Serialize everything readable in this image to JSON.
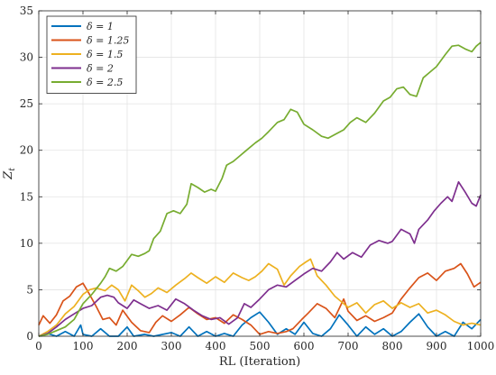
{
  "chart_data": {
    "type": "line",
    "title": "",
    "xlabel": "RL (Iteration)",
    "ylabel": "Z_t",
    "ylabel_main": "Z",
    "ylabel_sub": "t",
    "xlim": [
      0,
      1000
    ],
    "ylim": [
      0,
      35
    ],
    "xticks": [
      0,
      100,
      200,
      300,
      400,
      500,
      600,
      700,
      800,
      900,
      1000
    ],
    "yticks": [
      0,
      5,
      10,
      15,
      20,
      25,
      30,
      35
    ],
    "grid": true,
    "legend_location": "top-left",
    "series": [
      {
        "name": "δ = 1",
        "color": "#0072BD",
        "points": [
          [
            0,
            0
          ],
          [
            20,
            0.3
          ],
          [
            40,
            0
          ],
          [
            60,
            0.5
          ],
          [
            80,
            0
          ],
          [
            95,
            1.2
          ],
          [
            100,
            0.2
          ],
          [
            120,
            0
          ],
          [
            140,
            0.8
          ],
          [
            160,
            0
          ],
          [
            180,
            0
          ],
          [
            200,
            1.0
          ],
          [
            215,
            0
          ],
          [
            240,
            0.2
          ],
          [
            260,
            0
          ],
          [
            300,
            0.4
          ],
          [
            320,
            0
          ],
          [
            340,
            1.0
          ],
          [
            360,
            0
          ],
          [
            380,
            0.5
          ],
          [
            400,
            0
          ],
          [
            420,
            0.3
          ],
          [
            440,
            0
          ],
          [
            460,
            1.2
          ],
          [
            480,
            2.0
          ],
          [
            500,
            2.6
          ],
          [
            520,
            1.5
          ],
          [
            540,
            0.2
          ],
          [
            560,
            0.8
          ],
          [
            580,
            0.2
          ],
          [
            600,
            1.5
          ],
          [
            620,
            0.3
          ],
          [
            640,
            0
          ],
          [
            660,
            0.8
          ],
          [
            680,
            2.3
          ],
          [
            700,
            1.2
          ],
          [
            720,
            0
          ],
          [
            740,
            1.0
          ],
          [
            760,
            0.2
          ],
          [
            780,
            0.8
          ],
          [
            800,
            0
          ],
          [
            820,
            0.5
          ],
          [
            840,
            1.5
          ],
          [
            860,
            2.4
          ],
          [
            880,
            1.0
          ],
          [
            900,
            0
          ],
          [
            920,
            0.5
          ],
          [
            940,
            0
          ],
          [
            960,
            1.5
          ],
          [
            980,
            0.8
          ],
          [
            1000,
            1.8
          ]
        ]
      },
      {
        "name": "δ = 1.25",
        "color": "#D95319",
        "points": [
          [
            0,
            1.2
          ],
          [
            10,
            2.2
          ],
          [
            25,
            1.4
          ],
          [
            40,
            2.3
          ],
          [
            55,
            3.8
          ],
          [
            70,
            4.3
          ],
          [
            85,
            5.3
          ],
          [
            100,
            5.7
          ],
          [
            115,
            4.5
          ],
          [
            130,
            3.2
          ],
          [
            145,
            1.8
          ],
          [
            160,
            2.0
          ],
          [
            175,
            1.2
          ],
          [
            190,
            2.8
          ],
          [
            210,
            1.5
          ],
          [
            230,
            0.6
          ],
          [
            250,
            0.4
          ],
          [
            265,
            1.5
          ],
          [
            280,
            2.2
          ],
          [
            300,
            1.6
          ],
          [
            320,
            2.3
          ],
          [
            340,
            3.1
          ],
          [
            360,
            2.4
          ],
          [
            380,
            1.8
          ],
          [
            400,
            2.0
          ],
          [
            420,
            1.4
          ],
          [
            440,
            2.3
          ],
          [
            460,
            1.8
          ],
          [
            480,
            1.2
          ],
          [
            500,
            0.2
          ],
          [
            520,
            0.5
          ],
          [
            540,
            0.3
          ],
          [
            560,
            0.5
          ],
          [
            575,
            0.8
          ],
          [
            595,
            1.8
          ],
          [
            610,
            2.5
          ],
          [
            630,
            3.5
          ],
          [
            650,
            3.0
          ],
          [
            670,
            2.0
          ],
          [
            690,
            4.0
          ],
          [
            700,
            2.7
          ],
          [
            720,
            1.7
          ],
          [
            740,
            2.2
          ],
          [
            760,
            1.6
          ],
          [
            780,
            2.0
          ],
          [
            800,
            2.5
          ],
          [
            820,
            4.0
          ],
          [
            840,
            5.2
          ],
          [
            860,
            6.3
          ],
          [
            880,
            6.8
          ],
          [
            900,
            6.0
          ],
          [
            920,
            7.0
          ],
          [
            940,
            7.3
          ],
          [
            955,
            7.8
          ],
          [
            970,
            6.7
          ],
          [
            985,
            5.3
          ],
          [
            1000,
            5.8
          ]
        ]
      },
      {
        "name": "δ = 1.5",
        "color": "#EDB120",
        "points": [
          [
            0,
            0
          ],
          [
            20,
            0.5
          ],
          [
            40,
            1.2
          ],
          [
            60,
            2.4
          ],
          [
            80,
            3.2
          ],
          [
            100,
            4.5
          ],
          [
            115,
            5.0
          ],
          [
            130,
            5.2
          ],
          [
            150,
            4.9
          ],
          [
            165,
            5.5
          ],
          [
            180,
            5.0
          ],
          [
            195,
            3.8
          ],
          [
            210,
            5.5
          ],
          [
            225,
            4.9
          ],
          [
            240,
            4.2
          ],
          [
            255,
            4.6
          ],
          [
            270,
            5.2
          ],
          [
            290,
            4.7
          ],
          [
            310,
            5.5
          ],
          [
            330,
            6.2
          ],
          [
            345,
            6.8
          ],
          [
            360,
            6.3
          ],
          [
            380,
            5.7
          ],
          [
            400,
            6.4
          ],
          [
            420,
            5.8
          ],
          [
            440,
            6.8
          ],
          [
            460,
            6.3
          ],
          [
            475,
            6.0
          ],
          [
            490,
            6.4
          ],
          [
            505,
            7.0
          ],
          [
            520,
            7.8
          ],
          [
            540,
            7.2
          ],
          [
            555,
            5.5
          ],
          [
            570,
            6.5
          ],
          [
            590,
            7.5
          ],
          [
            605,
            8.0
          ],
          [
            615,
            8.3
          ],
          [
            630,
            6.5
          ],
          [
            650,
            5.5
          ],
          [
            670,
            4.3
          ],
          [
            690,
            3.5
          ],
          [
            700,
            3.1
          ],
          [
            720,
            3.6
          ],
          [
            740,
            2.5
          ],
          [
            760,
            3.4
          ],
          [
            780,
            3.8
          ],
          [
            800,
            3.0
          ],
          [
            820,
            3.6
          ],
          [
            840,
            3.1
          ],
          [
            860,
            3.5
          ],
          [
            880,
            2.5
          ],
          [
            900,
            2.8
          ],
          [
            920,
            2.3
          ],
          [
            940,
            1.6
          ],
          [
            960,
            1.2
          ],
          [
            980,
            1.4
          ],
          [
            1000,
            1.2
          ]
        ]
      },
      {
        "name": "δ = 2",
        "color": "#7E2F8E",
        "points": [
          [
            0,
            0
          ],
          [
            20,
            0.3
          ],
          [
            40,
            1.0
          ],
          [
            60,
            1.8
          ],
          [
            80,
            2.4
          ],
          [
            100,
            3.0
          ],
          [
            120,
            3.3
          ],
          [
            140,
            4.2
          ],
          [
            155,
            4.4
          ],
          [
            170,
            4.2
          ],
          [
            180,
            3.6
          ],
          [
            200,
            3.0
          ],
          [
            215,
            3.9
          ],
          [
            230,
            3.5
          ],
          [
            250,
            3.0
          ],
          [
            270,
            3.3
          ],
          [
            290,
            2.8
          ],
          [
            310,
            4.0
          ],
          [
            330,
            3.5
          ],
          [
            350,
            2.8
          ],
          [
            370,
            2.2
          ],
          [
            390,
            1.8
          ],
          [
            410,
            2.0
          ],
          [
            430,
            1.3
          ],
          [
            450,
            2.0
          ],
          [
            465,
            3.5
          ],
          [
            480,
            3.1
          ],
          [
            500,
            4.0
          ],
          [
            520,
            5.0
          ],
          [
            540,
            5.5
          ],
          [
            560,
            5.3
          ],
          [
            580,
            6.0
          ],
          [
            600,
            6.7
          ],
          [
            620,
            7.3
          ],
          [
            640,
            7.0
          ],
          [
            660,
            8.0
          ],
          [
            675,
            9.0
          ],
          [
            690,
            8.3
          ],
          [
            710,
            9.0
          ],
          [
            730,
            8.5
          ],
          [
            750,
            9.8
          ],
          [
            770,
            10.3
          ],
          [
            790,
            10.0
          ],
          [
            800,
            10.2
          ],
          [
            820,
            11.5
          ],
          [
            840,
            11.0
          ],
          [
            850,
            10.0
          ],
          [
            860,
            11.5
          ],
          [
            880,
            12.5
          ],
          [
            895,
            13.5
          ],
          [
            910,
            14.3
          ],
          [
            925,
            15.0
          ],
          [
            935,
            14.5
          ],
          [
            950,
            16.6
          ],
          [
            965,
            15.5
          ],
          [
            980,
            14.3
          ],
          [
            990,
            14.0
          ],
          [
            1000,
            15.2
          ]
        ]
      },
      {
        "name": "δ = 2.5",
        "color": "#77AC30",
        "points": [
          [
            0,
            0
          ],
          [
            20,
            0.2
          ],
          [
            40,
            0.6
          ],
          [
            60,
            1.0
          ],
          [
            80,
            1.8
          ],
          [
            100,
            3.5
          ],
          [
            120,
            4.5
          ],
          [
            140,
            5.7
          ],
          [
            150,
            6.4
          ],
          [
            160,
            7.3
          ],
          [
            175,
            7.0
          ],
          [
            190,
            7.5
          ],
          [
            210,
            8.8
          ],
          [
            225,
            8.6
          ],
          [
            240,
            8.9
          ],
          [
            250,
            9.2
          ],
          [
            260,
            10.5
          ],
          [
            275,
            11.3
          ],
          [
            290,
            13.2
          ],
          [
            305,
            13.5
          ],
          [
            320,
            13.2
          ],
          [
            335,
            14.2
          ],
          [
            345,
            16.4
          ],
          [
            360,
            16.0
          ],
          [
            375,
            15.5
          ],
          [
            390,
            15.8
          ],
          [
            400,
            15.6
          ],
          [
            415,
            17.0
          ],
          [
            425,
            18.4
          ],
          [
            440,
            18.8
          ],
          [
            455,
            19.4
          ],
          [
            470,
            20.0
          ],
          [
            490,
            20.8
          ],
          [
            505,
            21.3
          ],
          [
            520,
            22.0
          ],
          [
            540,
            23.0
          ],
          [
            555,
            23.3
          ],
          [
            570,
            24.4
          ],
          [
            585,
            24.1
          ],
          [
            600,
            22.8
          ],
          [
            620,
            22.2
          ],
          [
            640,
            21.5
          ],
          [
            655,
            21.3
          ],
          [
            670,
            21.7
          ],
          [
            690,
            22.2
          ],
          [
            705,
            23.0
          ],
          [
            720,
            23.5
          ],
          [
            740,
            23.0
          ],
          [
            760,
            24.0
          ],
          [
            780,
            25.3
          ],
          [
            795,
            25.7
          ],
          [
            810,
            26.6
          ],
          [
            825,
            26.8
          ],
          [
            840,
            26.0
          ],
          [
            855,
            25.8
          ],
          [
            870,
            27.8
          ],
          [
            885,
            28.4
          ],
          [
            900,
            29.0
          ],
          [
            920,
            30.3
          ],
          [
            935,
            31.2
          ],
          [
            950,
            31.3
          ],
          [
            965,
            30.9
          ],
          [
            980,
            30.6
          ],
          [
            990,
            31.2
          ],
          [
            1000,
            31.6
          ]
        ]
      }
    ]
  }
}
